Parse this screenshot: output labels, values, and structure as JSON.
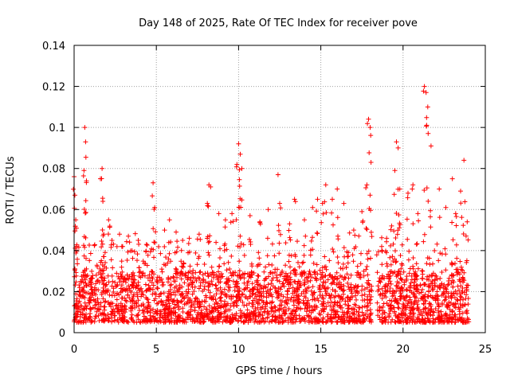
{
  "chart_data": {
    "type": "scatter",
    "title": "Day 148 of 2025, Rate Of TEC Index for receiver pove",
    "xlabel": "GPS time / hours",
    "ylabel": "ROTI / TECUs",
    "xlim": [
      0,
      25
    ],
    "ylim": [
      0,
      0.14
    ],
    "xticks": [
      0,
      5,
      10,
      15,
      20,
      25
    ],
    "xtick_labels": [
      "0",
      "5",
      "10",
      "15",
      "20",
      "25"
    ],
    "yticks": [
      0,
      0.02,
      0.04,
      0.06,
      0.08,
      0.1,
      0.12,
      0.14
    ],
    "ytick_labels": [
      "0",
      "0.02",
      "0.04",
      "0.06",
      "0.08",
      "0.1",
      "0.12",
      "0.14"
    ],
    "grid": true,
    "marker": "+",
    "color": "#ff0000",
    "data_gap_hours": [
      18.1,
      18.4
    ],
    "series": [
      {
        "name": "ROTI",
        "x": [
          0.0,
          0.05,
          0.1,
          0.15,
          0.6,
          0.65,
          0.7,
          0.75,
          1.6,
          1.7,
          1.75,
          1.8,
          2.1,
          2.3,
          2.9,
          3.3,
          3.9,
          4.4,
          4.8,
          4.9,
          5.5,
          5.8,
          6.2,
          6.6,
          7.0,
          7.6,
          8.1,
          8.2,
          8.3,
          8.8,
          9.2,
          9.6,
          9.9,
          10.0,
          10.1,
          10.2,
          10.7,
          11.3,
          11.8,
          12.4,
          12.5,
          13.1,
          13.4,
          14.0,
          14.5,
          14.8,
          15.1,
          15.3,
          15.7,
          16.0,
          16.4,
          17.0,
          17.5,
          17.8,
          17.9,
          18.0,
          18.05,
          18.7,
          19.0,
          19.3,
          19.5,
          19.6,
          19.7,
          19.8,
          20.3,
          20.6,
          20.9,
          21.3,
          21.4,
          21.5,
          21.7,
          22.2,
          22.6,
          23.0,
          23.2,
          23.5,
          23.7,
          23.9
        ],
        "y": [
          0.076,
          0.067,
          0.055,
          0.042,
          0.079,
          0.1,
          0.093,
          0.074,
          0.075,
          0.08,
          0.064,
          0.048,
          0.055,
          0.045,
          0.042,
          0.047,
          0.045,
          0.043,
          0.073,
          0.061,
          0.05,
          0.055,
          0.049,
          0.045,
          0.046,
          0.048,
          0.063,
          0.072,
          0.071,
          0.058,
          0.055,
          0.058,
          0.082,
          0.092,
          0.087,
          0.08,
          0.057,
          0.054,
          0.06,
          0.077,
          0.063,
          0.053,
          0.065,
          0.055,
          0.061,
          0.065,
          0.063,
          0.072,
          0.065,
          0.07,
          0.063,
          0.05,
          0.059,
          0.072,
          0.104,
          0.1,
          0.083,
          0.042,
          0.046,
          0.052,
          0.079,
          0.093,
          0.09,
          0.07,
          0.068,
          0.072,
          0.058,
          0.12,
          0.117,
          0.11,
          0.091,
          0.07,
          0.061,
          0.075,
          0.058,
          0.069,
          0.084,
          0.054
        ]
      }
    ],
    "baseline_band": {
      "description": "dense noise floor across the day",
      "typical_min": 0.005,
      "typical_max": 0.03
    }
  }
}
